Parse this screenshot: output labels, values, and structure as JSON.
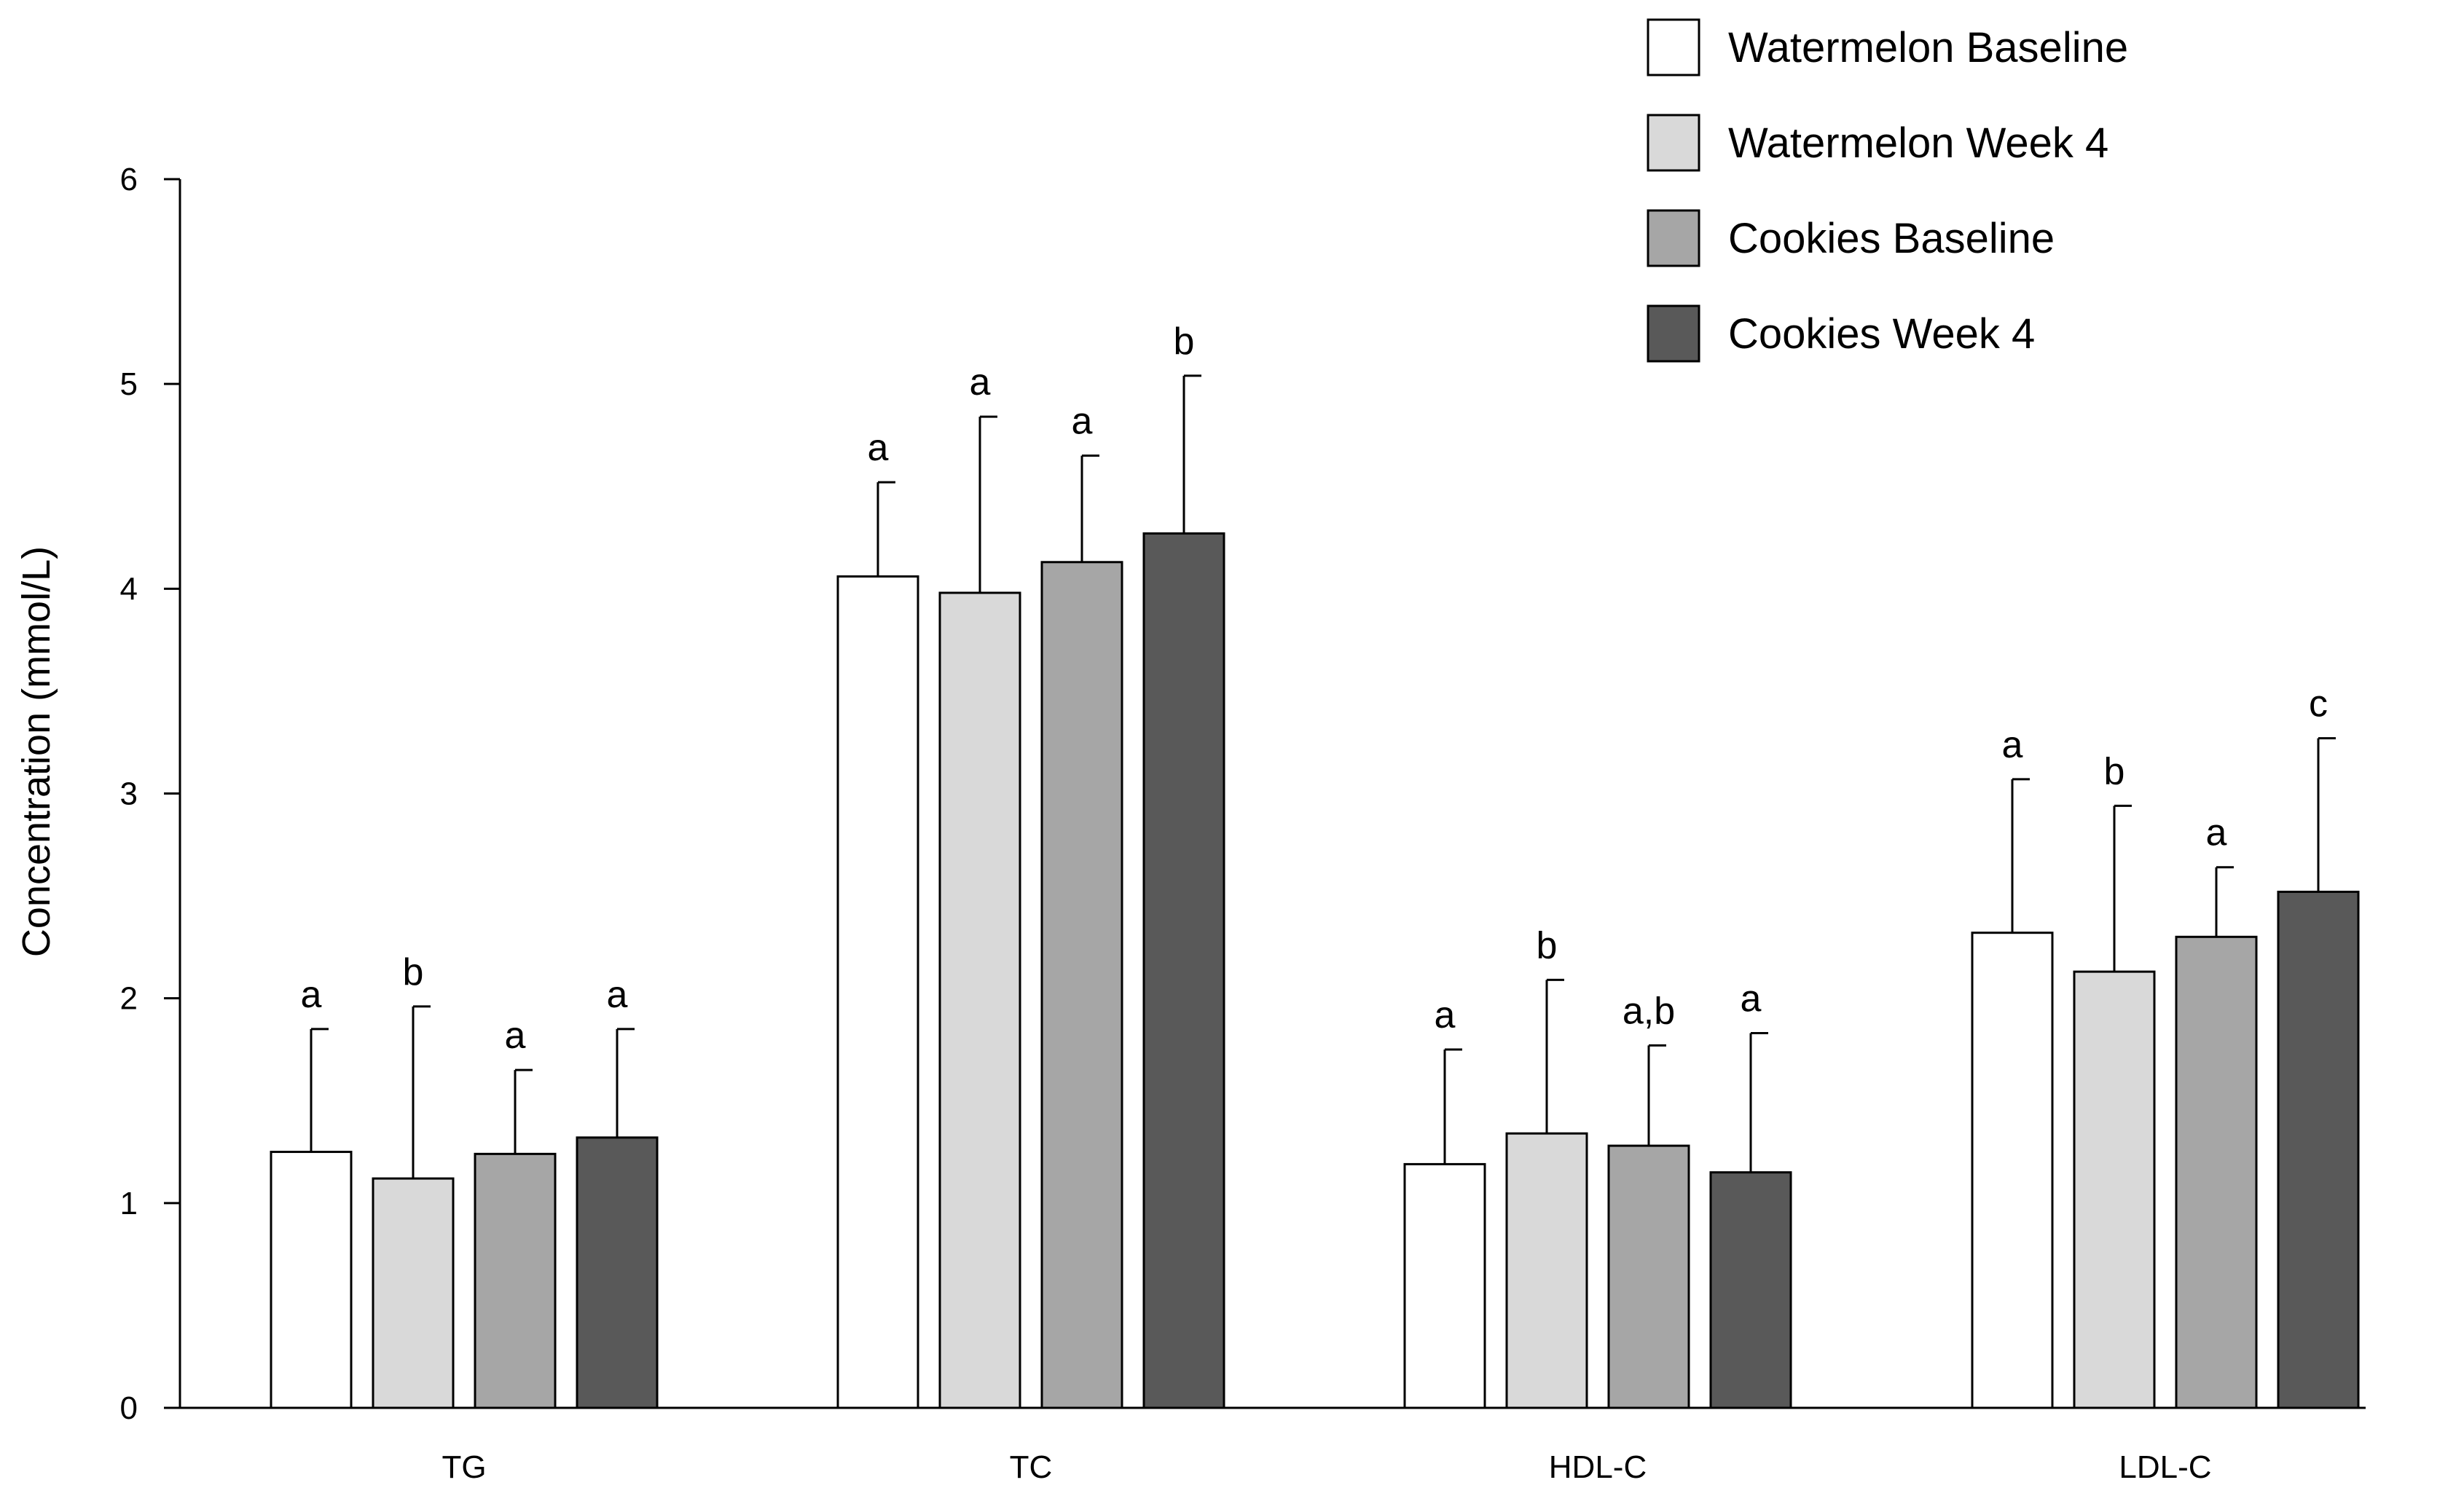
{
  "chart_data": {
    "type": "bar",
    "title": "",
    "xlabel": "",
    "ylabel": "Concentration (mmol/L)",
    "ylim": [
      0,
      6
    ],
    "yticks": [
      "0",
      "1",
      "2",
      "3",
      "4",
      "5",
      "6"
    ],
    "grid": false,
    "legend_position": "top-right",
    "categories": [
      "TG",
      "TC",
      "HDL-C",
      "LDL-C"
    ],
    "series": [
      {
        "name": "Watermelon Baseline",
        "color": "#ffffff",
        "values": [
          1.25,
          4.06,
          1.19,
          2.32
        ],
        "errors": [
          0.6,
          0.46,
          0.56,
          0.75
        ],
        "annotations": [
          "a",
          "a",
          "a",
          "a"
        ]
      },
      {
        "name": "Watermelon Week 4",
        "color": "#d9d9d9",
        "values": [
          1.12,
          3.98,
          1.34,
          2.13
        ],
        "errors": [
          0.84,
          0.86,
          0.75,
          0.81
        ],
        "annotations": [
          "b",
          "a",
          "b",
          "b"
        ]
      },
      {
        "name": "Cookies Baseline",
        "color": "#a6a6a6",
        "values": [
          1.24,
          4.13,
          1.28,
          2.3
        ],
        "errors": [
          0.41,
          0.52,
          0.49,
          0.34
        ],
        "annotations": [
          "a",
          "a",
          "a,b",
          "a"
        ]
      },
      {
        "name": "Cookies Week 4",
        "color": "#595959",
        "values": [
          1.32,
          4.27,
          1.15,
          2.52
        ],
        "errors": [
          0.53,
          0.77,
          0.68,
          0.75
        ],
        "annotations": [
          "a",
          "b",
          "a",
          "c"
        ]
      }
    ]
  }
}
